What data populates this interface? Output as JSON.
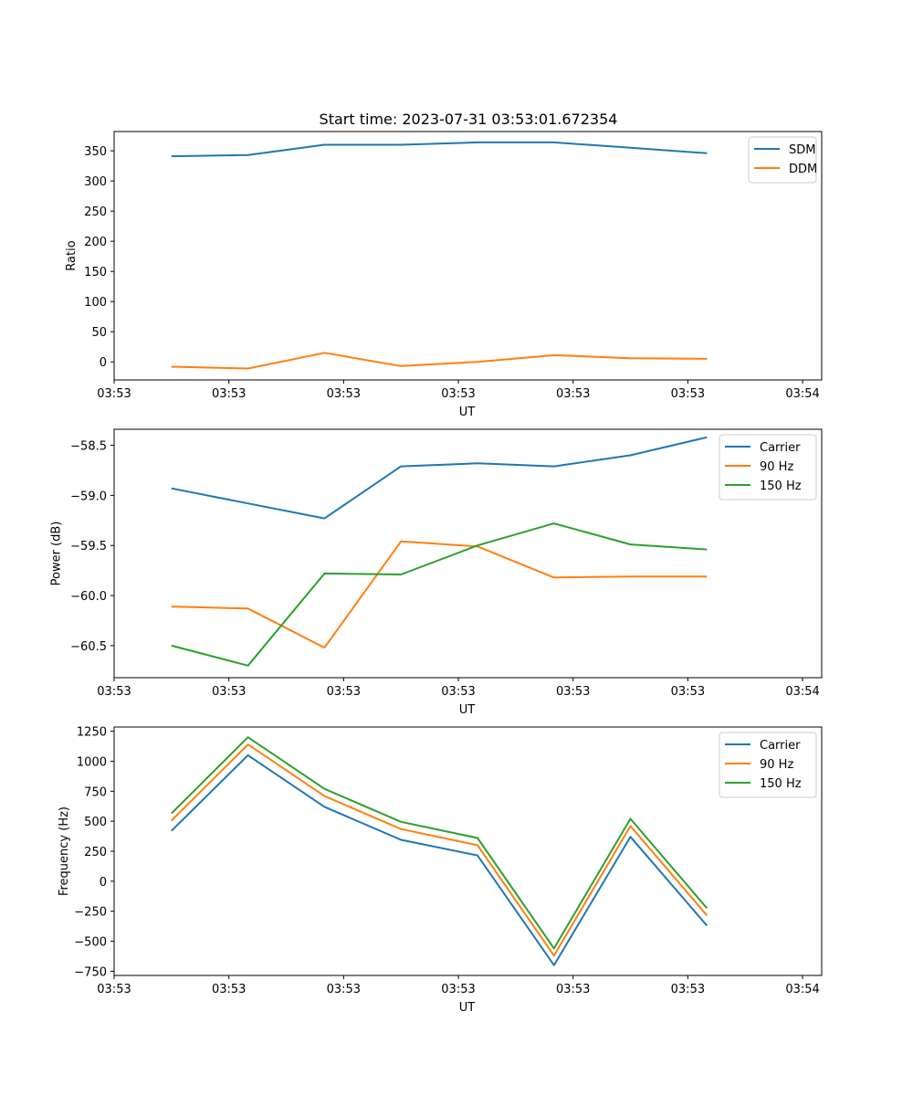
{
  "figure": {
    "title": "Start time: 2023-07-31 03:53:01.672354"
  },
  "chart_data": [
    {
      "type": "line",
      "title": "Start time: 2023-07-31 03:53:01.672354",
      "xlabel": "UT",
      "ylabel": "Ratio",
      "xlim": [
        -0.75,
        8.5
      ],
      "ylim": [
        -30,
        382
      ],
      "x": [
        0,
        1,
        2,
        3,
        4,
        5,
        6,
        7
      ],
      "x_ticks": [
        -0.75,
        0.75,
        2.25,
        3.75,
        5.25,
        6.75,
        8.25
      ],
      "x_tick_labels": [
        "03:53",
        "03:53",
        "03:53",
        "03:53",
        "03:53",
        "03:53",
        "03:54"
      ],
      "y_ticks": [
        0,
        50,
        100,
        150,
        200,
        250,
        300,
        350
      ],
      "y_tick_labels": [
        "0",
        "50",
        "100",
        "150",
        "200",
        "250",
        "300",
        "350"
      ],
      "legend": "top-right",
      "series": [
        {
          "name": "SDM",
          "color": "#1f77b4",
          "values": [
            341,
            343,
            360,
            360,
            364,
            364,
            355,
            346
          ]
        },
        {
          "name": "DDM",
          "color": "#ff7f0e",
          "values": [
            -8,
            -11,
            15,
            -7,
            0,
            11,
            6,
            5
          ]
        }
      ]
    },
    {
      "type": "line",
      "title": "",
      "xlabel": "UT",
      "ylabel": "Power (dB)",
      "xlim": [
        -0.75,
        8.5
      ],
      "ylim": [
        -60.82,
        -58.34
      ],
      "x": [
        0,
        1,
        2,
        3,
        4,
        5,
        6,
        7
      ],
      "x_ticks": [
        -0.75,
        0.75,
        2.25,
        3.75,
        5.25,
        6.75,
        8.25
      ],
      "x_tick_labels": [
        "03:53",
        "03:53",
        "03:53",
        "03:53",
        "03:53",
        "03:53",
        "03:54"
      ],
      "y_ticks": [
        -60.5,
        -60.0,
        -59.5,
        -59.0,
        -58.5
      ],
      "y_tick_labels": [
        "−60.5",
        "−60.0",
        "−59.5",
        "−59.0",
        "−58.5"
      ],
      "legend": "top-right",
      "series": [
        {
          "name": "Carrier",
          "color": "#1f77b4",
          "values": [
            -58.93,
            -59.08,
            -59.23,
            -58.71,
            -58.68,
            -58.71,
            -58.6,
            -58.42
          ]
        },
        {
          "name": "90 Hz",
          "color": "#ff7f0e",
          "values": [
            -60.11,
            -60.13,
            -60.52,
            -59.46,
            -59.51,
            -59.82,
            -59.81,
            -59.81
          ]
        },
        {
          "name": "150 Hz",
          "color": "#2ca02c",
          "values": [
            -60.5,
            -60.7,
            -59.78,
            -59.79,
            -59.5,
            -59.28,
            -59.49,
            -59.54
          ]
        }
      ]
    },
    {
      "type": "line",
      "title": "",
      "xlabel": "UT",
      "ylabel": "Frequency (Hz)",
      "xlim": [
        -0.75,
        8.5
      ],
      "ylim": [
        -785,
        1285
      ],
      "x": [
        0,
        1,
        2,
        3,
        4,
        5,
        6,
        7
      ],
      "x_ticks": [
        -0.75,
        0.75,
        2.25,
        3.75,
        5.25,
        6.75,
        8.25
      ],
      "x_tick_labels": [
        "03:53",
        "03:53",
        "03:53",
        "03:53",
        "03:53",
        "03:53",
        "03:54"
      ],
      "y_ticks": [
        -750,
        -500,
        -250,
        0,
        250,
        500,
        750,
        1000,
        1250
      ],
      "y_tick_labels": [
        "−750",
        "−500",
        "−250",
        "0",
        "250",
        "500",
        "750",
        "1000",
        "1250"
      ],
      "legend": "top-right",
      "series": [
        {
          "name": "Carrier",
          "color": "#1f77b4",
          "values": [
            420,
            1050,
            620,
            345,
            215,
            -700,
            370,
            -370
          ]
        },
        {
          "name": "90 Hz",
          "color": "#ff7f0e",
          "values": [
            505,
            1140,
            710,
            435,
            300,
            -620,
            460,
            -285
          ]
        },
        {
          "name": "150 Hz",
          "color": "#2ca02c",
          "values": [
            565,
            1200,
            770,
            495,
            360,
            -560,
            520,
            -225
          ]
        }
      ]
    }
  ]
}
